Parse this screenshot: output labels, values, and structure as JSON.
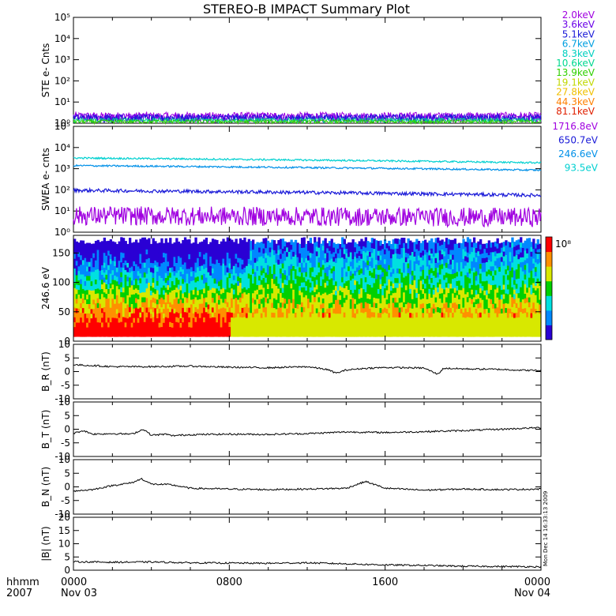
{
  "title": "STEREO-B IMPACT Summary Plot",
  "footer": {
    "left_top": "hhmm",
    "left_bottom": "2007",
    "ticks": [
      "0000",
      "0800",
      "1600",
      "0000"
    ],
    "dates": [
      "Nov 03",
      "Nov 04"
    ]
  },
  "side_stamp": "Mon Dec 14 16:33:13 2009",
  "colorbar": {
    "label": "10⁸",
    "colors": [
      "#2a00d4",
      "#0088ff",
      "#00e0e0",
      "#00d000",
      "#d8e800",
      "#ff9000",
      "#ff0000"
    ]
  },
  "ste_legend": [
    {
      "label": "2.0keV",
      "color": "#a000e0"
    },
    {
      "label": "3.6keV",
      "color": "#6a00e8"
    },
    {
      "label": "5.1keV",
      "color": "#1a1ad8"
    },
    {
      "label": "6.7keV",
      "color": "#00a0e0"
    },
    {
      "label": "8.3keV",
      "color": "#00d0c0"
    },
    {
      "label": "10.6keV",
      "color": "#00d890"
    },
    {
      "label": "13.9keV",
      "color": "#30d000"
    },
    {
      "label": "19.1keV",
      "color": "#c0d800"
    },
    {
      "label": "27.8keV",
      "color": "#f0c000"
    },
    {
      "label": "44.3keV",
      "color": "#ff8000"
    },
    {
      "label": "81.1keV",
      "color": "#e02000"
    }
  ],
  "swea_legend": [
    {
      "label": "1716.8eV",
      "color": "#a000e0"
    },
    {
      "label": "650.7eV",
      "color": "#1a1ad8"
    },
    {
      "label": "246.6eV",
      "color": "#0090e8"
    },
    {
      "label": "93.5eV",
      "color": "#00d0d0"
    }
  ],
  "chart_data": [
    {
      "type": "line",
      "ylabel": "STE e- Cnts",
      "yscale": "log",
      "ylim": [
        1,
        100000
      ],
      "yticks": [
        "10⁰",
        "10¹",
        "10²",
        "10³",
        "10⁴",
        "10⁵"
      ],
      "series": [
        {
          "name": "2.0keV",
          "level": 2.2,
          "noise": 0.5
        },
        {
          "name": "3.6keV",
          "level": 2.0,
          "noise": 0.45
        },
        {
          "name": "5.1keV",
          "level": 1.8,
          "noise": 0.4
        },
        {
          "name": "10.6keV",
          "level": 1.4,
          "noise": 0.25
        },
        {
          "name": "13.9keV",
          "level": 1.2,
          "noise": 0.2
        }
      ]
    },
    {
      "type": "line",
      "ylabel": "SWEA e- cnts",
      "yscale": "log",
      "ylim": [
        1,
        100000
      ],
      "yticks": [
        "10⁰",
        "10¹",
        "10²",
        "10³",
        "10⁴",
        "10⁵"
      ],
      "series": [
        {
          "name": "93.5eV",
          "start": 3200,
          "end": 1900,
          "noise": 0.04
        },
        {
          "name": "246.6eV",
          "start": 1400,
          "end": 850,
          "noise": 0.04
        },
        {
          "name": "650.7eV",
          "start": 95,
          "end": 55,
          "noise": 0.08
        },
        {
          "name": "1716.8eV",
          "start": 6,
          "end": 5,
          "noise": 0.45
        }
      ]
    },
    {
      "type": "heatmap",
      "ylabel": "246.6 eV",
      "ylim": [
        0,
        180
      ],
      "yticks": [
        "0",
        "50",
        "100",
        "150"
      ]
    },
    {
      "type": "line",
      "ylabel": "B_R (nT)",
      "ylim": [
        -10,
        10
      ],
      "yticks": [
        "-10",
        "-5",
        "0",
        "5",
        "10"
      ],
      "x": [
        0,
        1,
        2,
        4,
        6,
        8,
        10,
        12,
        13,
        13.5,
        14,
        15,
        16,
        18,
        18.7,
        19,
        20,
        22,
        23,
        24
      ],
      "values": [
        2.5,
        2.2,
        1.8,
        1.8,
        2.0,
        1.6,
        1.4,
        1.8,
        0.8,
        -0.6,
        0.6,
        1.2,
        1.5,
        1.3,
        -1.0,
        1.2,
        1.0,
        0.8,
        0.5,
        0.4
      ]
    },
    {
      "type": "line",
      "ylabel": "B_T (nT)",
      "ylim": [
        -10,
        10
      ],
      "yticks": [
        "-10",
        "-5",
        "0",
        "5",
        "10"
      ],
      "x": [
        0,
        0.5,
        1,
        2,
        3,
        3.6,
        4,
        4.8,
        5,
        6,
        8,
        10,
        12,
        14,
        16,
        18,
        20,
        22,
        24
      ],
      "values": [
        -1.5,
        -0.5,
        -1.8,
        -1.6,
        -1.8,
        0.0,
        -2.2,
        -1.8,
        -2.4,
        -2.0,
        -1.8,
        -1.9,
        -1.6,
        -1.0,
        -1.2,
        -0.9,
        -0.5,
        0.0,
        0.6
      ]
    },
    {
      "type": "line",
      "ylabel": "B_N (nT)",
      "ylim": [
        -10,
        10
      ],
      "yticks": [
        "-10",
        "-5",
        "0",
        "5",
        "10"
      ],
      "x": [
        0,
        1,
        2,
        3,
        3.5,
        4,
        5,
        6,
        8,
        10,
        12,
        14,
        15,
        16,
        18,
        20,
        22,
        24
      ],
      "values": [
        -1.5,
        -1.0,
        0.5,
        1.5,
        3.0,
        1.0,
        0.8,
        -0.5,
        -0.8,
        -1.0,
        -0.8,
        -0.5,
        2.0,
        -0.5,
        -1.2,
        -0.8,
        -1.0,
        -0.8
      ]
    },
    {
      "type": "line",
      "ylabel": "|B| (nT)",
      "ylim": [
        0,
        20
      ],
      "yticks": [
        "0",
        "5",
        "10",
        "15",
        "20"
      ],
      "x": [
        0,
        2,
        4,
        6,
        8,
        10,
        12,
        14,
        16,
        18,
        20,
        22,
        24
      ],
      "values": [
        3.2,
        3.0,
        3.1,
        2.8,
        2.7,
        2.6,
        2.8,
        2.4,
        2.0,
        1.8,
        1.5,
        1.4,
        1.3
      ]
    }
  ]
}
